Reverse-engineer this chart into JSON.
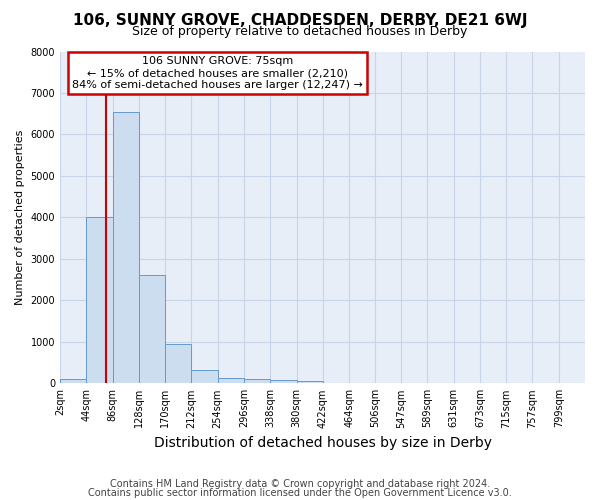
{
  "title1": "106, SUNNY GROVE, CHADDESDEN, DERBY, DE21 6WJ",
  "title2": "Size of property relative to detached houses in Derby",
  "xlabel": "Distribution of detached houses by size in Derby",
  "ylabel": "Number of detached properties",
  "footnote1": "Contains HM Land Registry data © Crown copyright and database right 2024.",
  "footnote2": "Contains public sector information licensed under the Open Government Licence v3.0.",
  "annotation_line1": "106 SUNNY GROVE: 75sqm",
  "annotation_line2": "← 15% of detached houses are smaller (2,210)",
  "annotation_line3": "84% of semi-detached houses are larger (12,247) →",
  "bar_edges": [
    2,
    44,
    86,
    128,
    170,
    212,
    254,
    296,
    338,
    380,
    422,
    464,
    506,
    547,
    589,
    631,
    673,
    715,
    757,
    799,
    841
  ],
  "bar_heights": [
    100,
    4000,
    6550,
    2620,
    950,
    310,
    130,
    110,
    80,
    55,
    0,
    0,
    0,
    0,
    0,
    0,
    0,
    0,
    0,
    0
  ],
  "bar_color": "#ccddf0",
  "bar_edgecolor": "#6699cc",
  "vline_x": 75,
  "vline_color": "#cc0000",
  "ylim": [
    0,
    8000
  ],
  "yticks": [
    0,
    1000,
    2000,
    3000,
    4000,
    5000,
    6000,
    7000,
    8000
  ],
  "annotation_box_edgecolor": "#cc0000",
  "annotation_box_facecolor": "white",
  "grid_color": "#c8d4e8",
  "plot_bg_color": "#e8eef8",
  "fig_bg_color": "#ffffff",
  "title1_fontsize": 11,
  "title2_fontsize": 9,
  "xlabel_fontsize": 10,
  "ylabel_fontsize": 8,
  "tick_fontsize": 7,
  "footnote_fontsize": 7,
  "annotation_fontsize": 8
}
